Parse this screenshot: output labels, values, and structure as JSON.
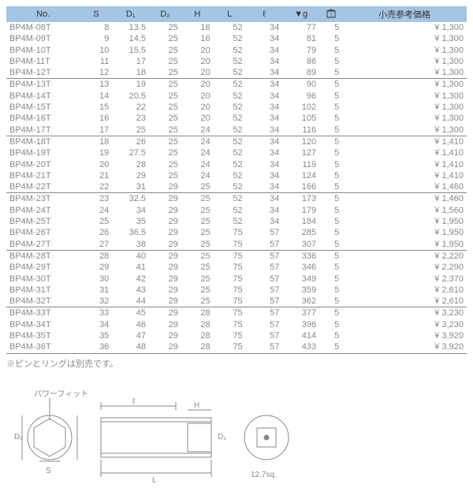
{
  "headers": {
    "no": "No.",
    "s": "S",
    "d1": "D₁",
    "d2": "D₂",
    "h": "H",
    "l": "L",
    "ell": "ℓ",
    "g": "▼g",
    "pkg": "",
    "price": "小売参考価格"
  },
  "colwidths": [
    "16%",
    "7%",
    "8%",
    "7%",
    "7%",
    "7%",
    "8%",
    "8%",
    "5%",
    "27%"
  ],
  "rows": [
    {
      "no": "BP4M-08T",
      "s": "8",
      "d1": "13.5",
      "d2": "25",
      "h": "16",
      "l": "52",
      "ell": "34",
      "g": "77",
      "pkg": "5",
      "price": "¥ 1,300",
      "u": 0
    },
    {
      "no": "BP4M-09T",
      "s": "9",
      "d1": "14.5",
      "d2": "25",
      "h": "16",
      "l": "52",
      "ell": "34",
      "g": "81",
      "pkg": "5",
      "price": "¥ 1,300",
      "u": 0
    },
    {
      "no": "BP4M-10T",
      "s": "10",
      "d1": "15.5",
      "d2": "25",
      "h": "20",
      "l": "52",
      "ell": "34",
      "g": "79",
      "pkg": "5",
      "price": "¥ 1,300",
      "u": 0
    },
    {
      "no": "BP4M-11T",
      "s": "11",
      "d1": "17",
      "d2": "25",
      "h": "20",
      "l": "52",
      "ell": "34",
      "g": "86",
      "pkg": "5",
      "price": "¥ 1,300",
      "u": 0
    },
    {
      "no": "BP4M-12T",
      "s": "12",
      "d1": "18",
      "d2": "25",
      "h": "20",
      "l": "52",
      "ell": "34",
      "g": "89",
      "pkg": "5",
      "price": "¥ 1,300",
      "u": 1
    },
    {
      "no": "BP4M-13T",
      "s": "13",
      "d1": "19",
      "d2": "25",
      "h": "20",
      "l": "52",
      "ell": "34",
      "g": "90",
      "pkg": "5",
      "price": "¥ 1,300",
      "u": 0
    },
    {
      "no": "BP4M-14T",
      "s": "14",
      "d1": "20.5",
      "d2": "25",
      "h": "20",
      "l": "52",
      "ell": "34",
      "g": "96",
      "pkg": "5",
      "price": "¥ 1,300",
      "u": 0
    },
    {
      "no": "BP4M-15T",
      "s": "15",
      "d1": "22",
      "d2": "25",
      "h": "20",
      "l": "52",
      "ell": "34",
      "g": "102",
      "pkg": "5",
      "price": "¥ 1,300",
      "u": 0
    },
    {
      "no": "BP4M-16T",
      "s": "16",
      "d1": "23",
      "d2": "25",
      "h": "20",
      "l": "52",
      "ell": "34",
      "g": "105",
      "pkg": "5",
      "price": "¥ 1,300",
      "u": 0
    },
    {
      "no": "BP4M-17T",
      "s": "17",
      "d1": "25",
      "d2": "25",
      "h": "24",
      "l": "52",
      "ell": "34",
      "g": "116",
      "pkg": "5",
      "price": "¥ 1,300",
      "u": 1
    },
    {
      "no": "BP4M-18T",
      "s": "18",
      "d1": "26",
      "d2": "25",
      "h": "24",
      "l": "52",
      "ell": "34",
      "g": "120",
      "pkg": "5",
      "price": "¥ 1,410",
      "u": 0
    },
    {
      "no": "BP4M-19T",
      "s": "19",
      "d1": "27.5",
      "d2": "25",
      "h": "24",
      "l": "52",
      "ell": "34",
      "g": "127",
      "pkg": "5",
      "price": "¥ 1,410",
      "u": 0
    },
    {
      "no": "BP4M-20T",
      "s": "20",
      "d1": "28",
      "d2": "25",
      "h": "24",
      "l": "52",
      "ell": "34",
      "g": "119",
      "pkg": "5",
      "price": "¥ 1,410",
      "u": 0
    },
    {
      "no": "BP4M-21T",
      "s": "21",
      "d1": "29",
      "d2": "25",
      "h": "24",
      "l": "52",
      "ell": "34",
      "g": "124",
      "pkg": "5",
      "price": "¥ 1,410",
      "u": 0
    },
    {
      "no": "BP4M-22T",
      "s": "22",
      "d1": "31",
      "d2": "29",
      "h": "25",
      "l": "52",
      "ell": "34",
      "g": "166",
      "pkg": "5",
      "price": "¥ 1,460",
      "u": 1
    },
    {
      "no": "BP4M-23T",
      "s": "23",
      "d1": "32.5",
      "d2": "29",
      "h": "25",
      "l": "52",
      "ell": "34",
      "g": "173",
      "pkg": "5",
      "price": "¥ 1,460",
      "u": 0
    },
    {
      "no": "BP4M-24T",
      "s": "24",
      "d1": "34",
      "d2": "29",
      "h": "25",
      "l": "52",
      "ell": "34",
      "g": "179",
      "pkg": "5",
      "price": "¥ 1,560",
      "u": 0
    },
    {
      "no": "BP4M-25T",
      "s": "25",
      "d1": "35",
      "d2": "29",
      "h": "25",
      "l": "52",
      "ell": "34",
      "g": "184",
      "pkg": "5",
      "price": "¥ 1,950",
      "u": 0
    },
    {
      "no": "BP4M-26T",
      "s": "26",
      "d1": "36.5",
      "d2": "29",
      "h": "25",
      "l": "75",
      "ell": "57",
      "g": "285",
      "pkg": "5",
      "price": "¥ 1,950",
      "u": 0
    },
    {
      "no": "BP4M-27T",
      "s": "27",
      "d1": "38",
      "d2": "29",
      "h": "25",
      "l": "75",
      "ell": "57",
      "g": "307",
      "pkg": "5",
      "price": "¥ 1,950",
      "u": 1
    },
    {
      "no": "BP4M-28T",
      "s": "28",
      "d1": "40",
      "d2": "29",
      "h": "25",
      "l": "75",
      "ell": "57",
      "g": "336",
      "pkg": "5",
      "price": "¥ 2,220",
      "u": 0
    },
    {
      "no": "BP4M-29T",
      "s": "29",
      "d1": "41",
      "d2": "29",
      "h": "25",
      "l": "75",
      "ell": "57",
      "g": "346",
      "pkg": "5",
      "price": "¥ 2,290",
      "u": 0
    },
    {
      "no": "BP4M-30T",
      "s": "30",
      "d1": "42",
      "d2": "29",
      "h": "25",
      "l": "75",
      "ell": "57",
      "g": "349",
      "pkg": "5",
      "price": "¥ 2,370",
      "u": 0
    },
    {
      "no": "BP4M-31T",
      "s": "31",
      "d1": "43",
      "d2": "29",
      "h": "25",
      "l": "75",
      "ell": "57",
      "g": "359",
      "pkg": "5",
      "price": "¥ 2,610",
      "u": 0
    },
    {
      "no": "BP4M-32T",
      "s": "32",
      "d1": "44",
      "d2": "29",
      "h": "25",
      "l": "75",
      "ell": "57",
      "g": "362",
      "pkg": "5",
      "price": "¥ 2,610",
      "u": 1
    },
    {
      "no": "BP4M-33T",
      "s": "33",
      "d1": "45",
      "d2": "29",
      "h": "28",
      "l": "75",
      "ell": "57",
      "g": "377",
      "pkg": "5",
      "price": "¥ 3,230",
      "u": 0
    },
    {
      "no": "BP4M-34T",
      "s": "34",
      "d1": "46",
      "d2": "29",
      "h": "28",
      "l": "75",
      "ell": "57",
      "g": "396",
      "pkg": "5",
      "price": "¥ 3,230",
      "u": 0
    },
    {
      "no": "BP4M-35T",
      "s": "35",
      "d1": "47",
      "d2": "29",
      "h": "28",
      "l": "75",
      "ell": "57",
      "g": "414",
      "pkg": "5",
      "price": "¥ 3,920",
      "u": 0
    },
    {
      "no": "BP4M-36T",
      "s": "36",
      "d1": "48",
      "d2": "29",
      "h": "28",
      "l": "75",
      "ell": "57",
      "g": "433",
      "pkg": "5",
      "price": "¥ 3,920",
      "u": 1
    }
  ],
  "note": "※ピンとリングは別売です。",
  "diagram": {
    "labels": {
      "powerfit": "パワーフィット",
      "ell": "ℓ",
      "d1": "D₁",
      "d2": "D₂",
      "s": "S",
      "h": "H",
      "l": "L",
      "sq": "12.7sq."
    },
    "stroke": "#888",
    "fill": "#fff",
    "text_color": "#888",
    "font_size": 10
  }
}
